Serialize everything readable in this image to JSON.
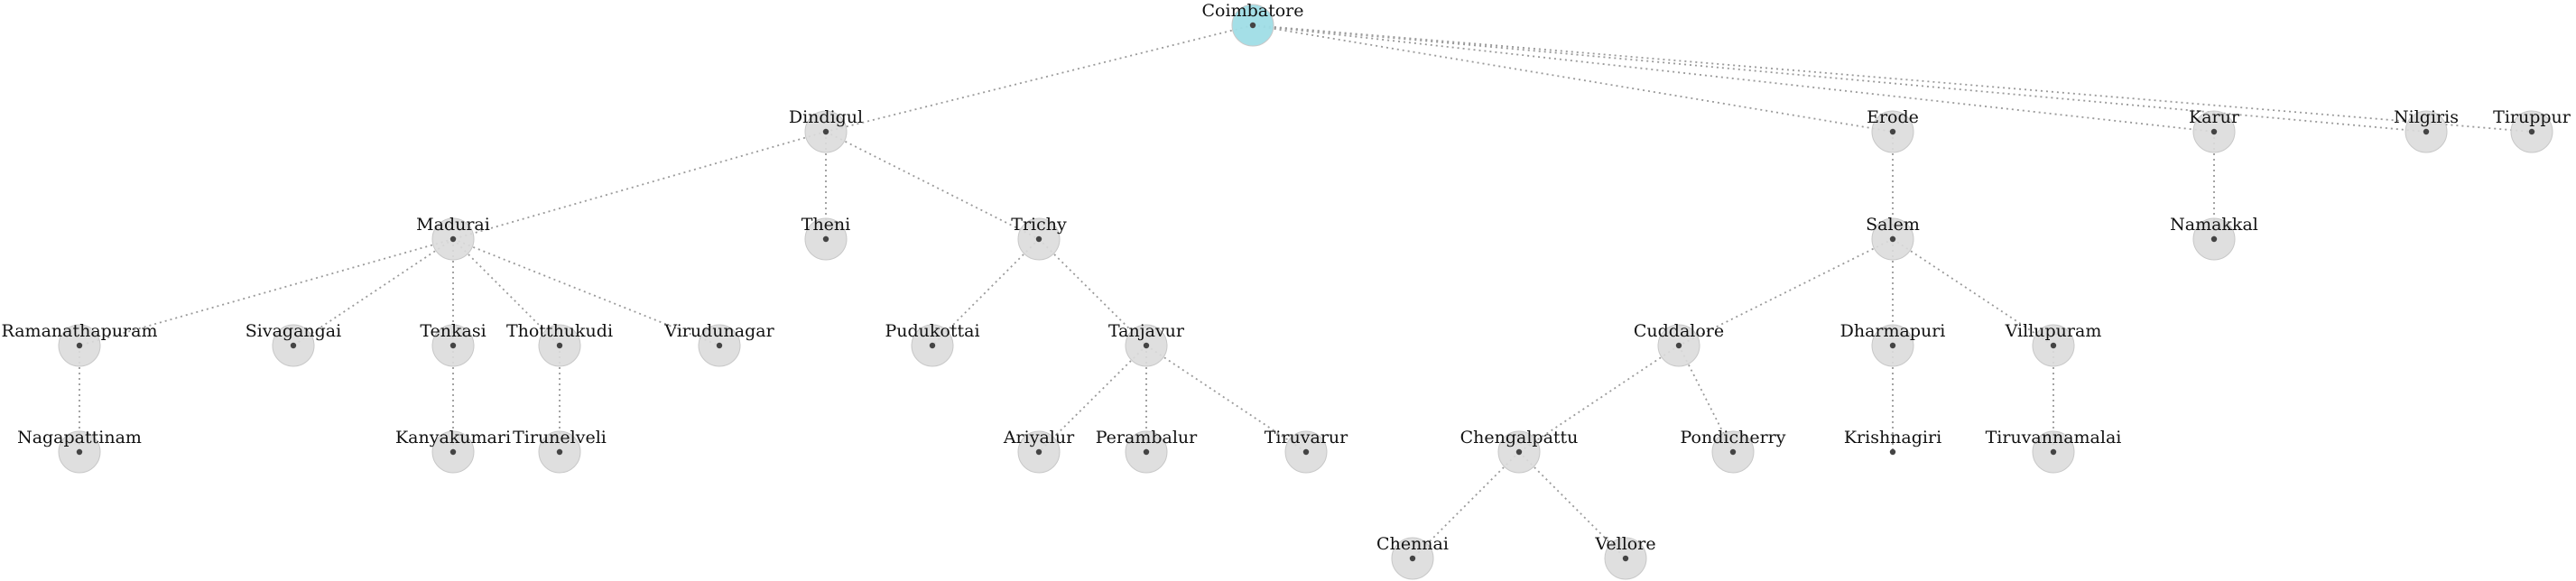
{
  "diagram": {
    "type": "tree",
    "colors": {
      "root_node": "#9fdde6",
      "node": "#dcdcdc",
      "edge": "#9a9a9a",
      "dot": "#444444"
    },
    "nodes": [
      {
        "id": "coimbatore",
        "label": "Coimbatore",
        "root": true
      },
      {
        "id": "dindigul",
        "label": "Dindigul",
        "parent": "coimbatore"
      },
      {
        "id": "erode",
        "label": "Erode",
        "parent": "coimbatore"
      },
      {
        "id": "karur",
        "label": "Karur",
        "parent": "coimbatore"
      },
      {
        "id": "nilgiris",
        "label": "Nilgiris",
        "parent": "coimbatore"
      },
      {
        "id": "tiruppur",
        "label": "Tiruppur",
        "parent": "coimbatore"
      },
      {
        "id": "madurai",
        "label": "Madurai",
        "parent": "dindigul"
      },
      {
        "id": "theni",
        "label": "Theni",
        "parent": "dindigul"
      },
      {
        "id": "trichy",
        "label": "Trichy",
        "parent": "dindigul"
      },
      {
        "id": "salem",
        "label": "Salem",
        "parent": "erode"
      },
      {
        "id": "namakkal",
        "label": "Namakkal",
        "parent": "karur"
      },
      {
        "id": "ramanathapuram",
        "label": "Ramanathapuram",
        "parent": "madurai"
      },
      {
        "id": "sivagangai",
        "label": "Sivagangai",
        "parent": "madurai"
      },
      {
        "id": "tenkasi",
        "label": "Tenkasi",
        "parent": "madurai"
      },
      {
        "id": "thotthukudi",
        "label": "Thotthukudi",
        "parent": "madurai"
      },
      {
        "id": "virudunagar",
        "label": "Virudunagar",
        "parent": "madurai"
      },
      {
        "id": "pudukottai",
        "label": "Pudukottai",
        "parent": "trichy"
      },
      {
        "id": "tanjavur",
        "label": "Tanjavur",
        "parent": "trichy"
      },
      {
        "id": "cuddalore",
        "label": "Cuddalore",
        "parent": "salem"
      },
      {
        "id": "dharmapuri",
        "label": "Dharmapuri",
        "parent": "salem"
      },
      {
        "id": "villupuram",
        "label": "Villupuram",
        "parent": "salem"
      },
      {
        "id": "nagapattinam",
        "label": "Nagapattinam",
        "parent": "ramanathapuram"
      },
      {
        "id": "kanyakumari",
        "label": "Kanyakumari",
        "parent": "tenkasi"
      },
      {
        "id": "tirunelveli",
        "label": "Tirunelveli",
        "parent": "thotthukudi"
      },
      {
        "id": "ariyalur",
        "label": "Ariyalur",
        "parent": "tanjavur"
      },
      {
        "id": "perambalur",
        "label": "Perambalur",
        "parent": "tanjavur"
      },
      {
        "id": "tiruvarur",
        "label": "Tiruvarur",
        "parent": "tanjavur"
      },
      {
        "id": "chengalpattu",
        "label": "Chengalpattu",
        "parent": "cuddalore"
      },
      {
        "id": "pondicherry",
        "label": "Pondicherry",
        "parent": "cuddalore"
      },
      {
        "id": "krishnagiri",
        "label": "Krishnagiri",
        "parent": "dharmapuri",
        "halo": false
      },
      {
        "id": "tiruvannamalai",
        "label": "Tiruvannamalai",
        "parent": "villupuram"
      },
      {
        "id": "chennai",
        "label": "Chennai",
        "parent": "chengalpattu"
      },
      {
        "id": "vellore",
        "label": "Vellore",
        "parent": "chengalpattu"
      }
    ]
  }
}
